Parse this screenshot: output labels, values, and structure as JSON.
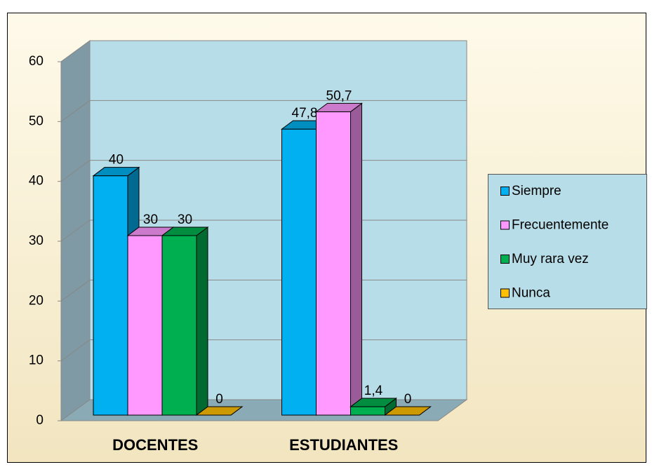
{
  "chart_data": {
    "type": "bar3d",
    "categories": [
      "DOCENTES",
      "ESTUDIANTES"
    ],
    "series": [
      {
        "name": "Siempre",
        "color": "#00b0f0",
        "values": [
          40,
          47.8
        ],
        "value_labels": [
          "40",
          "47,8"
        ]
      },
      {
        "name": "Frecuentemente",
        "color": "#ff99ff",
        "values": [
          30,
          50.7
        ],
        "value_labels": [
          "30",
          "50,7"
        ]
      },
      {
        "name": "Muy rara vez",
        "color": "#00b050",
        "values": [
          30,
          1.4
        ],
        "value_labels": [
          "30",
          "1,4"
        ]
      },
      {
        "name": "Nunca",
        "color": "#ffc000",
        "values": [
          0,
          0
        ],
        "value_labels": [
          "0",
          "0"
        ]
      }
    ],
    "ylim": [
      0,
      60
    ],
    "yticks": [
      0,
      10,
      20,
      30,
      40,
      50,
      60
    ],
    "grid": true,
    "legend": "right"
  }
}
